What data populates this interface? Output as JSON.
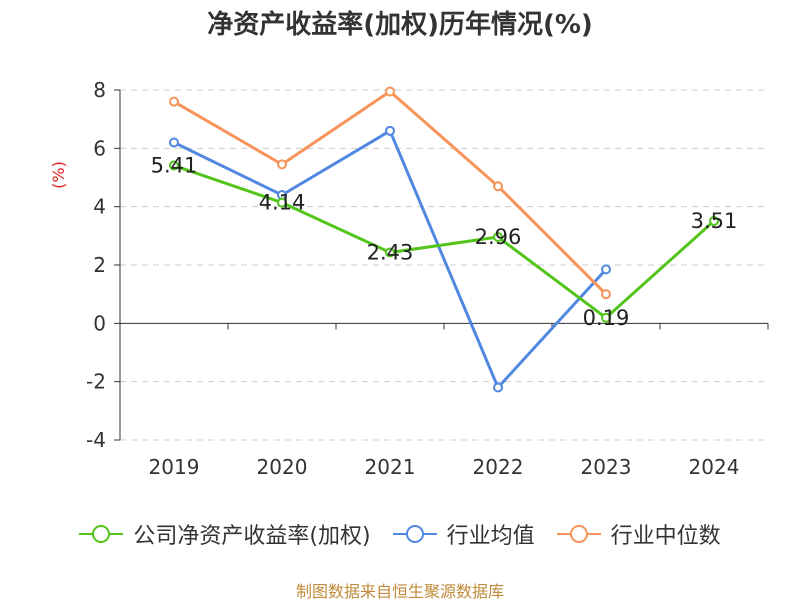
{
  "chart_data": {
    "type": "line",
    "title": "净资产收益率(加权)历年情况(%)",
    "ylabel": "(%)",
    "categories": [
      "2019",
      "2020",
      "2021",
      "2022",
      "2023",
      "2024"
    ],
    "ylim": [
      -4,
      8
    ],
    "yticks": [
      -4,
      -2,
      0,
      2,
      4,
      6,
      8
    ],
    "grid": true,
    "legend_position": "bottom",
    "series": [
      {
        "name": "公司净资产收益率(加权)",
        "color": "#52c41a",
        "values": [
          5.41,
          4.14,
          2.43,
          2.96,
          0.19,
          3.51
        ],
        "labels": [
          "5.41",
          "4.14",
          "2.43",
          "2.96",
          "0.19",
          "3.51"
        ]
      },
      {
        "name": "行业均值",
        "color": "#5087e0",
        "values": [
          6.2,
          4.4,
          6.6,
          -2.2,
          1.85,
          null
        ]
      },
      {
        "name": "行业中位数",
        "color": "#f8935a",
        "values": [
          7.6,
          5.45,
          7.95,
          4.7,
          1.0,
          null
        ]
      }
    ]
  },
  "footer": "制图数据来自恒生聚源数据库"
}
